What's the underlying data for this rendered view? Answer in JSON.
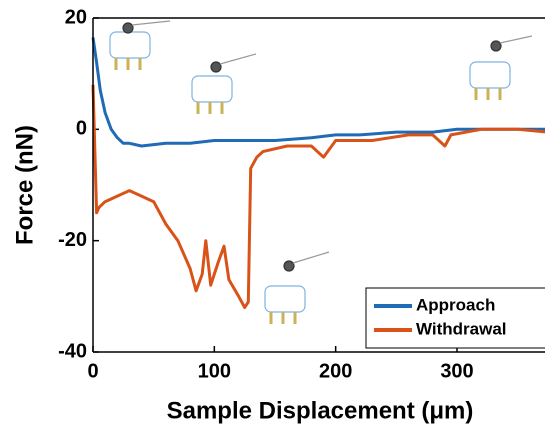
{
  "chart_data": {
    "type": "line",
    "xlabel": "Sample Displacement (μm)",
    "ylabel": "Force (nN)",
    "xlim": [
      0,
      375
    ],
    "xticks": [
      0,
      100,
      200,
      300
    ],
    "ylim": [
      -40,
      20
    ],
    "yticks": [
      -40,
      -20,
      0,
      20
    ],
    "legend": "lower right",
    "series": [
      {
        "name": "Approach",
        "color": "#1f6bb5",
        "x": [
          0,
          3,
          6,
          10,
          15,
          20,
          25,
          30,
          40,
          60,
          80,
          100,
          120,
          150,
          180,
          200,
          220,
          250,
          280,
          300,
          330,
          360,
          375
        ],
        "values": [
          16.5,
          12,
          7,
          3,
          0,
          -1.5,
          -2.5,
          -2.5,
          -3,
          -2.5,
          -2.5,
          -2,
          -2,
          -2,
          -1.5,
          -1,
          -1,
          -0.5,
          -0.5,
          0,
          0,
          0,
          0
        ]
      },
      {
        "name": "Withdrawal",
        "color": "#d95319",
        "x": [
          0,
          3,
          5,
          10,
          20,
          30,
          40,
          50,
          60,
          70,
          80,
          85,
          90,
          93,
          97,
          103,
          108,
          112,
          120,
          125,
          128,
          130,
          135,
          140,
          160,
          180,
          190,
          200,
          230,
          260,
          280,
          290,
          295,
          320,
          350,
          375
        ],
        "values": [
          8,
          -15,
          -14,
          -13,
          -12,
          -11,
          -12,
          -13,
          -17,
          -20,
          -25,
          -29,
          -26,
          -20,
          -28,
          -24,
          -21,
          -27,
          -30,
          -32,
          -31,
          -7,
          -5,
          -4,
          -3,
          -3,
          -5,
          -2,
          -2,
          -1,
          -1,
          -3,
          -1,
          0,
          0,
          -0.5
        ]
      }
    ]
  }
}
